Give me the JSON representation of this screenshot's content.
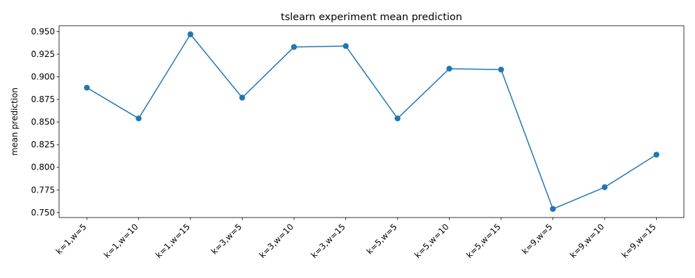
{
  "chart_data": {
    "type": "line",
    "title": "tslearn experiment mean prediction",
    "xlabel": "",
    "ylabel": "mean prediction",
    "categories": [
      "k=1,w=5",
      "k=1,w=10",
      "k=1,w=15",
      "k=3,w=5",
      "k=3,w=10",
      "k=3,w=15",
      "k=5,w=5",
      "k=5,w=10",
      "k=5,w=15",
      "k=9,w=5",
      "k=9,w=10",
      "k=9,w=15"
    ],
    "values": [
      0.888,
      0.854,
      0.947,
      0.877,
      0.933,
      0.934,
      0.854,
      0.909,
      0.908,
      0.754,
      0.778,
      0.814
    ],
    "yticks": [
      0.75,
      0.775,
      0.8,
      0.825,
      0.85,
      0.875,
      0.9,
      0.925,
      0.95
    ],
    "ytick_labels": [
      "0.750",
      "0.775",
      "0.800",
      "0.825",
      "0.850",
      "0.875",
      "0.900",
      "0.925",
      "0.950"
    ],
    "ylim": [
      0.7445,
      0.9565
    ],
    "grid": false,
    "color": "#1f77b4",
    "marker": "circle"
  }
}
